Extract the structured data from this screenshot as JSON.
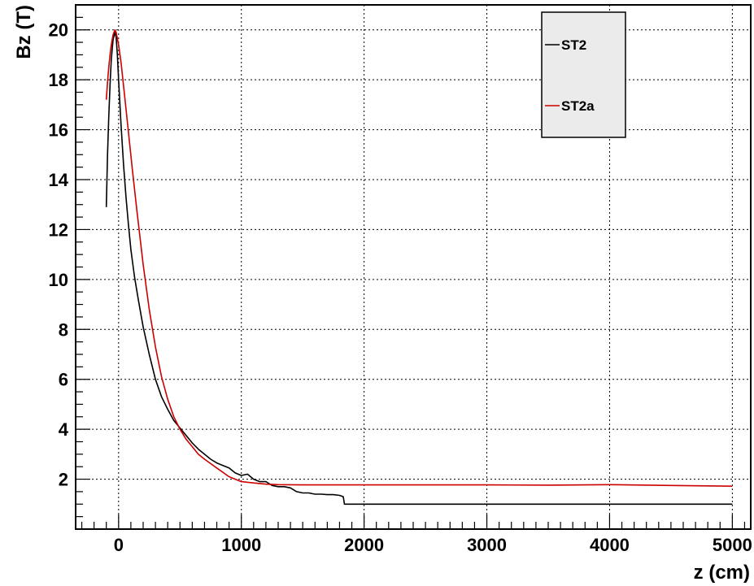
{
  "chart_data": {
    "type": "line",
    "xlabel": "z (cm)",
    "ylabel": "Bz (T)",
    "xlim": [
      -350,
      5150
    ],
    "ylim": [
      0,
      21
    ],
    "x_ticks": [
      0,
      1000,
      2000,
      3000,
      4000,
      5000
    ],
    "y_ticks": [
      2,
      4,
      6,
      8,
      10,
      12,
      14,
      16,
      18,
      20
    ],
    "grid": true,
    "legend": "top-right",
    "series": [
      {
        "name": "ST2",
        "color": "#000000",
        "x": [
          -100,
          -90,
          -80,
          -70,
          -60,
          -45,
          -30,
          -20,
          -10,
          0,
          20,
          40,
          60,
          80,
          100,
          130,
          160,
          200,
          250,
          300,
          350,
          400,
          450,
          500,
          550,
          600,
          650,
          700,
          750,
          800,
          850,
          900,
          950,
          1000,
          1050,
          1100,
          1150,
          1200,
          1250,
          1300,
          1350,
          1400,
          1450,
          1500,
          1550,
          1600,
          1650,
          1700,
          1750,
          1800,
          1830,
          1840,
          2000,
          3000,
          4000,
          5000
        ],
        "y": [
          12.9,
          15.0,
          16.5,
          17.8,
          18.8,
          19.6,
          19.9,
          19.7,
          19.0,
          18.0,
          16.2,
          14.6,
          13.3,
          12.2,
          11.2,
          10.1,
          9.2,
          8.1,
          7.0,
          6.0,
          5.3,
          4.8,
          4.35,
          4.05,
          3.75,
          3.45,
          3.2,
          3.0,
          2.8,
          2.65,
          2.55,
          2.45,
          2.25,
          2.15,
          2.2,
          2.0,
          1.9,
          1.9,
          1.75,
          1.7,
          1.7,
          1.65,
          1.5,
          1.45,
          1.45,
          1.4,
          1.4,
          1.38,
          1.38,
          1.35,
          1.3,
          1.0,
          1.0,
          1.0,
          1.0,
          1.0
        ]
      },
      {
        "name": "ST2a",
        "color": "#cc0000",
        "x": [
          -100,
          -90,
          -80,
          -70,
          -60,
          -45,
          -30,
          -20,
          0,
          20,
          50,
          80,
          110,
          150,
          200,
          250,
          300,
          350,
          400,
          450,
          500,
          550,
          600,
          650,
          700,
          800,
          900,
          1000,
          1100,
          1200,
          1300,
          1500,
          2000,
          3000,
          3500,
          4000,
          4500,
          5000
        ],
        "y": [
          17.2,
          17.9,
          18.5,
          19.0,
          19.4,
          19.8,
          20.0,
          19.9,
          19.4,
          18.7,
          17.3,
          15.9,
          14.5,
          12.7,
          10.6,
          8.8,
          7.3,
          6.1,
          5.2,
          4.5,
          4.0,
          3.6,
          3.3,
          3.0,
          2.8,
          2.45,
          2.1,
          1.9,
          1.85,
          1.8,
          1.78,
          1.77,
          1.77,
          1.77,
          1.76,
          1.78,
          1.75,
          1.72
        ]
      }
    ]
  }
}
